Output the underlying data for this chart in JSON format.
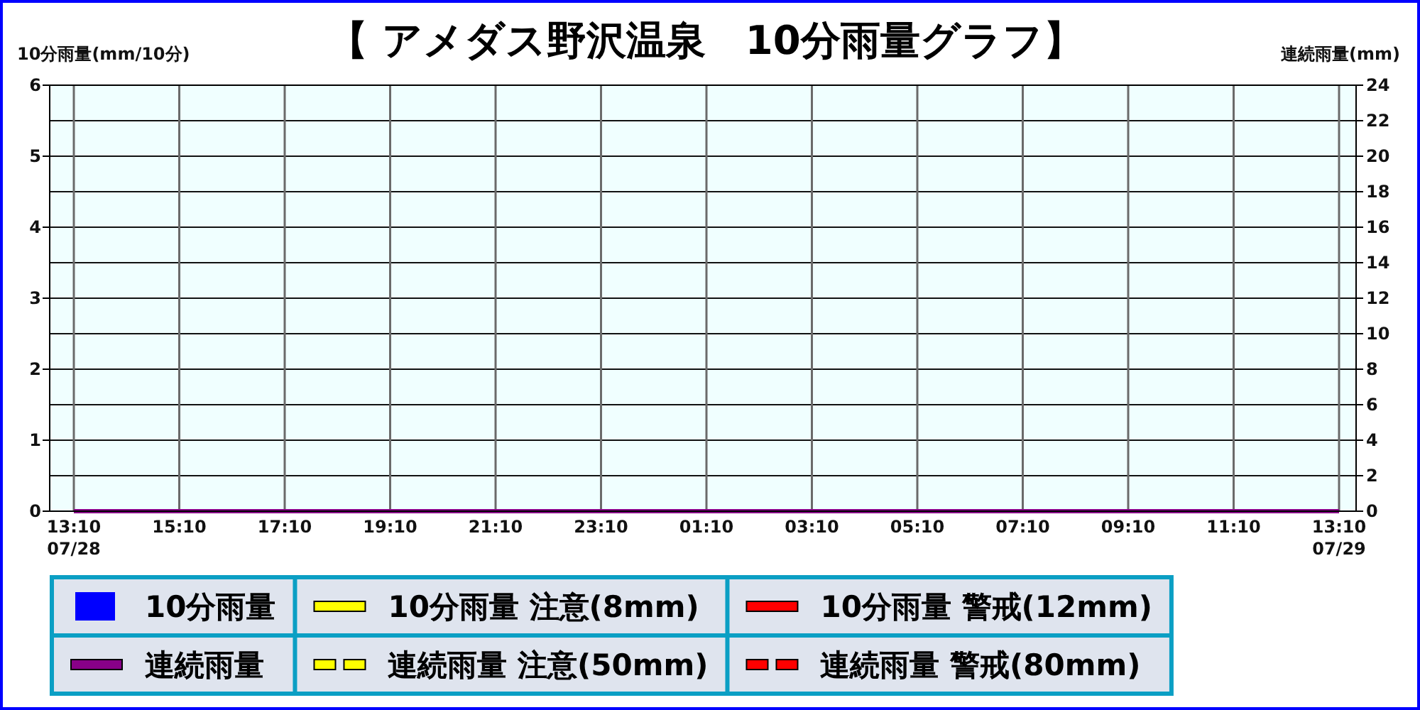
{
  "chart_data": {
    "type": "bar",
    "title": "【 アメダス野沢温泉　10分雨量グラフ】",
    "ylabel": "10分雨量(mm/10分)",
    "y2label": "連続雨量(mm)",
    "categories": [
      "13:10\n07/28",
      null,
      null,
      null,
      null,
      null,
      null,
      null,
      null,
      null,
      null,
      null,
      "15:10",
      null,
      null,
      null,
      null,
      null,
      null,
      null,
      null,
      null,
      null,
      null,
      "17:10",
      null,
      null,
      null,
      null,
      null,
      null,
      null,
      null,
      null,
      null,
      null,
      "19:10",
      null,
      null,
      null,
      null,
      null,
      null,
      null,
      null,
      null,
      null,
      null,
      "21:10",
      null,
      null,
      null,
      null,
      null,
      null,
      null,
      null,
      null,
      null,
      null,
      "23:10",
      null,
      null,
      null,
      null,
      null,
      null,
      null,
      null,
      null,
      null,
      null,
      "01:10",
      null,
      null,
      null,
      null,
      null,
      null,
      null,
      null,
      null,
      null,
      null,
      "03:10",
      null,
      null,
      null,
      null,
      null,
      null,
      null,
      null,
      null,
      null,
      null,
      "05:10",
      null,
      null,
      null,
      null,
      null,
      null,
      null,
      null,
      null,
      null,
      null,
      "07:10",
      null,
      null,
      null,
      null,
      null,
      null,
      null,
      null,
      null,
      null,
      null,
      "09:10",
      null,
      null,
      null,
      null,
      null,
      null,
      null,
      null,
      null,
      null,
      null,
      "11:10",
      null,
      null,
      null,
      null,
      null,
      null,
      null,
      null,
      null,
      null,
      null,
      "13:10\n07/29"
    ],
    "ylim": [
      0,
      6
    ],
    "yticks": [
      0,
      1,
      2,
      3,
      4,
      5,
      6
    ],
    "y2lim": [
      0,
      24
    ],
    "y2ticks": [
      0,
      2,
      4,
      6,
      8,
      10,
      12,
      14,
      16,
      18,
      20,
      22,
      24
    ],
    "grid": true,
    "legend": "bottom",
    "series": [
      {
        "name": "10分雨量",
        "color": "#0000ff",
        "values": [
          0,
          0,
          0,
          0,
          0,
          0,
          0,
          0,
          0,
          0,
          0,
          0,
          0,
          0,
          0,
          0,
          0,
          0,
          0,
          0,
          0,
          0,
          0,
          0,
          0,
          0,
          0,
          0,
          0,
          0,
          0,
          0,
          0,
          0,
          0,
          0,
          0,
          0,
          0,
          0,
          0,
          0,
          0,
          0,
          0,
          0,
          0,
          0,
          0,
          0,
          0,
          0,
          0,
          0,
          0,
          0,
          0,
          0,
          0,
          0,
          0,
          0,
          0,
          0,
          0,
          0,
          0,
          0,
          0,
          0,
          0,
          0,
          0,
          0,
          0,
          0,
          0,
          0,
          0,
          0,
          0,
          0,
          0,
          0,
          0,
          0,
          0,
          0,
          0,
          0,
          0,
          0,
          0,
          0,
          0,
          0,
          0,
          0,
          0,
          0,
          0,
          0,
          0,
          0,
          0,
          0,
          0,
          0,
          0,
          0,
          0,
          0,
          0,
          0,
          0,
          0,
          0,
          0,
          0,
          0,
          0,
          0,
          0,
          0,
          0,
          0,
          0,
          0,
          0,
          0,
          0,
          0,
          0,
          0,
          0,
          0,
          0,
          0,
          0,
          0,
          0,
          0,
          0,
          0,
          0
        ]
      },
      {
        "name": "10分雨量 注意(8mm)",
        "type": "line",
        "line_style": "solid",
        "color": "#ffff00",
        "values": [
          null,
          null,
          null,
          null,
          null,
          null,
          null,
          null,
          null,
          null,
          null,
          null,
          null,
          null,
          null,
          null,
          null,
          null,
          null,
          null,
          null,
          null,
          null,
          null,
          null,
          null,
          null,
          null,
          null,
          null,
          null,
          null,
          null,
          null,
          null,
          null,
          null,
          null,
          null,
          null,
          null,
          null,
          null,
          null,
          null,
          null,
          null,
          null,
          null,
          null,
          null,
          null,
          null,
          null,
          null,
          null,
          null,
          null,
          null,
          null,
          null,
          null,
          null,
          null,
          null,
          null,
          null,
          null,
          null,
          null,
          null,
          null,
          null,
          null,
          null,
          null,
          null,
          null,
          null,
          null,
          null,
          null,
          null,
          null,
          null,
          null,
          null,
          null,
          null,
          null,
          null,
          null,
          null,
          null,
          null,
          null,
          null,
          null,
          null,
          null,
          null,
          null,
          null,
          null,
          null,
          null,
          null,
          null,
          null,
          null,
          null,
          null,
          null,
          null,
          null,
          null,
          null,
          null,
          null,
          null,
          null,
          null,
          null,
          null,
          null,
          null,
          null,
          null,
          null,
          null,
          null,
          null,
          null,
          null,
          null,
          null,
          null,
          null,
          null,
          null,
          null,
          null,
          null,
          null,
          null
        ]
      },
      {
        "name": "10分雨量 警戒(12mm)",
        "type": "line",
        "line_style": "solid",
        "color": "#ff0000",
        "values": [
          null,
          null,
          null,
          null,
          null,
          null,
          null,
          null,
          null,
          null,
          null,
          null,
          null,
          null,
          null,
          null,
          null,
          null,
          null,
          null,
          null,
          null,
          null,
          null,
          null,
          null,
          null,
          null,
          null,
          null,
          null,
          null,
          null,
          null,
          null,
          null,
          null,
          null,
          null,
          null,
          null,
          null,
          null,
          null,
          null,
          null,
          null,
          null,
          null,
          null,
          null,
          null,
          null,
          null,
          null,
          null,
          null,
          null,
          null,
          null,
          null,
          null,
          null,
          null,
          null,
          null,
          null,
          null,
          null,
          null,
          null,
          null,
          null,
          null,
          null,
          null,
          null,
          null,
          null,
          null,
          null,
          null,
          null,
          null,
          null,
          null,
          null,
          null,
          null,
          null,
          null,
          null,
          null,
          null,
          null,
          null,
          null,
          null,
          null,
          null,
          null,
          null,
          null,
          null,
          null,
          null,
          null,
          null,
          null,
          null,
          null,
          null,
          null,
          null,
          null,
          null,
          null,
          null,
          null,
          null,
          null,
          null,
          null,
          null,
          null,
          null,
          null,
          null,
          null,
          null,
          null,
          null,
          null,
          null,
          null,
          null,
          null,
          null,
          null,
          null,
          null,
          null,
          null,
          null,
          null
        ]
      },
      {
        "name": "連続雨量",
        "type": "line",
        "line_style": "solid",
        "color": "#880088",
        "values": [
          0,
          0,
          0,
          0,
          0,
          0,
          0,
          0,
          0,
          0,
          0,
          0,
          0,
          0,
          0,
          0,
          0,
          0,
          0,
          0,
          0,
          0,
          0,
          0,
          0,
          0,
          0,
          0,
          0,
          0,
          0,
          0,
          0,
          0,
          0,
          0,
          0,
          0,
          0,
          0,
          0,
          0,
          0,
          0,
          0,
          0,
          0,
          0,
          0,
          0,
          0,
          0,
          0,
          0,
          0,
          0,
          0,
          0,
          0,
          0,
          0,
          0,
          0,
          0,
          0,
          0,
          0,
          0,
          0,
          0,
          0,
          0,
          0,
          0,
          0,
          0,
          0,
          0,
          0,
          0,
          0,
          0,
          0,
          0,
          0,
          0,
          0,
          0,
          0,
          0,
          0,
          0,
          0,
          0,
          0,
          0,
          0,
          0,
          0,
          0,
          0,
          0,
          0,
          0,
          0,
          0,
          0,
          0,
          0,
          0,
          0,
          0,
          0,
          0,
          0,
          0,
          0,
          0,
          0,
          0,
          0,
          0,
          0,
          0,
          0,
          0,
          0,
          0,
          0,
          0,
          0,
          0,
          0,
          0,
          0,
          0,
          0,
          0,
          0,
          0,
          0,
          0,
          0,
          0,
          0
        ]
      },
      {
        "name": "連続雨量 注意(50mm)",
        "type": "line",
        "line_style": "dashed",
        "color": "#ffff00",
        "values": [
          null,
          null,
          null,
          null,
          null,
          null,
          null,
          null,
          null,
          null,
          null,
          null,
          null,
          null,
          null,
          null,
          null,
          null,
          null,
          null,
          null,
          null,
          null,
          null,
          null,
          null,
          null,
          null,
          null,
          null,
          null,
          null,
          null,
          null,
          null,
          null,
          null,
          null,
          null,
          null,
          null,
          null,
          null,
          null,
          null,
          null,
          null,
          null,
          null,
          null,
          null,
          null,
          null,
          null,
          null,
          null,
          null,
          null,
          null,
          null,
          null,
          null,
          null,
          null,
          null,
          null,
          null,
          null,
          null,
          null,
          null,
          null,
          null,
          null,
          null,
          null,
          null,
          null,
          null,
          null,
          null,
          null,
          null,
          null,
          null,
          null,
          null,
          null,
          null,
          null,
          null,
          null,
          null,
          null,
          null,
          null,
          null,
          null,
          null,
          null,
          null,
          null,
          null,
          null,
          null,
          null,
          null,
          null,
          null,
          null,
          null,
          null,
          null,
          null,
          null,
          null,
          null,
          null,
          null,
          null,
          null,
          null,
          null,
          null,
          null,
          null,
          null,
          null,
          null,
          null,
          null,
          null,
          null,
          null,
          null,
          null,
          null,
          null,
          null,
          null,
          null,
          null,
          null,
          null,
          null
        ]
      },
      {
        "name": "連続雨量 警戒(80mm)",
        "type": "line",
        "line_style": "dashed",
        "color": "#ff0000",
        "values": [
          null,
          null,
          null,
          null,
          null,
          null,
          null,
          null,
          null,
          null,
          null,
          null,
          null,
          null,
          null,
          null,
          null,
          null,
          null,
          null,
          null,
          null,
          null,
          null,
          null,
          null,
          null,
          null,
          null,
          null,
          null,
          null,
          null,
          null,
          null,
          null,
          null,
          null,
          null,
          null,
          null,
          null,
          null,
          null,
          null,
          null,
          null,
          null,
          null,
          null,
          null,
          null,
          null,
          null,
          null,
          null,
          null,
          null,
          null,
          null,
          null,
          null,
          null,
          null,
          null,
          null,
          null,
          null,
          null,
          null,
          null,
          null,
          null,
          null,
          null,
          null,
          null,
          null,
          null,
          null,
          null,
          null,
          null,
          null,
          null,
          null,
          null,
          null,
          null,
          null,
          null,
          null,
          null,
          null,
          null,
          null,
          null,
          null,
          null,
          null,
          null,
          null,
          null,
          null,
          null,
          null,
          null,
          null,
          null,
          null,
          null,
          null,
          null,
          null,
          null,
          null,
          null,
          null,
          null,
          null,
          null,
          null,
          null,
          null,
          null,
          null,
          null,
          null,
          null,
          null,
          null,
          null,
          null,
          null,
          null,
          null,
          null,
          null,
          null,
          null,
          null,
          null,
          null,
          null,
          null
        ]
      }
    ]
  }
}
